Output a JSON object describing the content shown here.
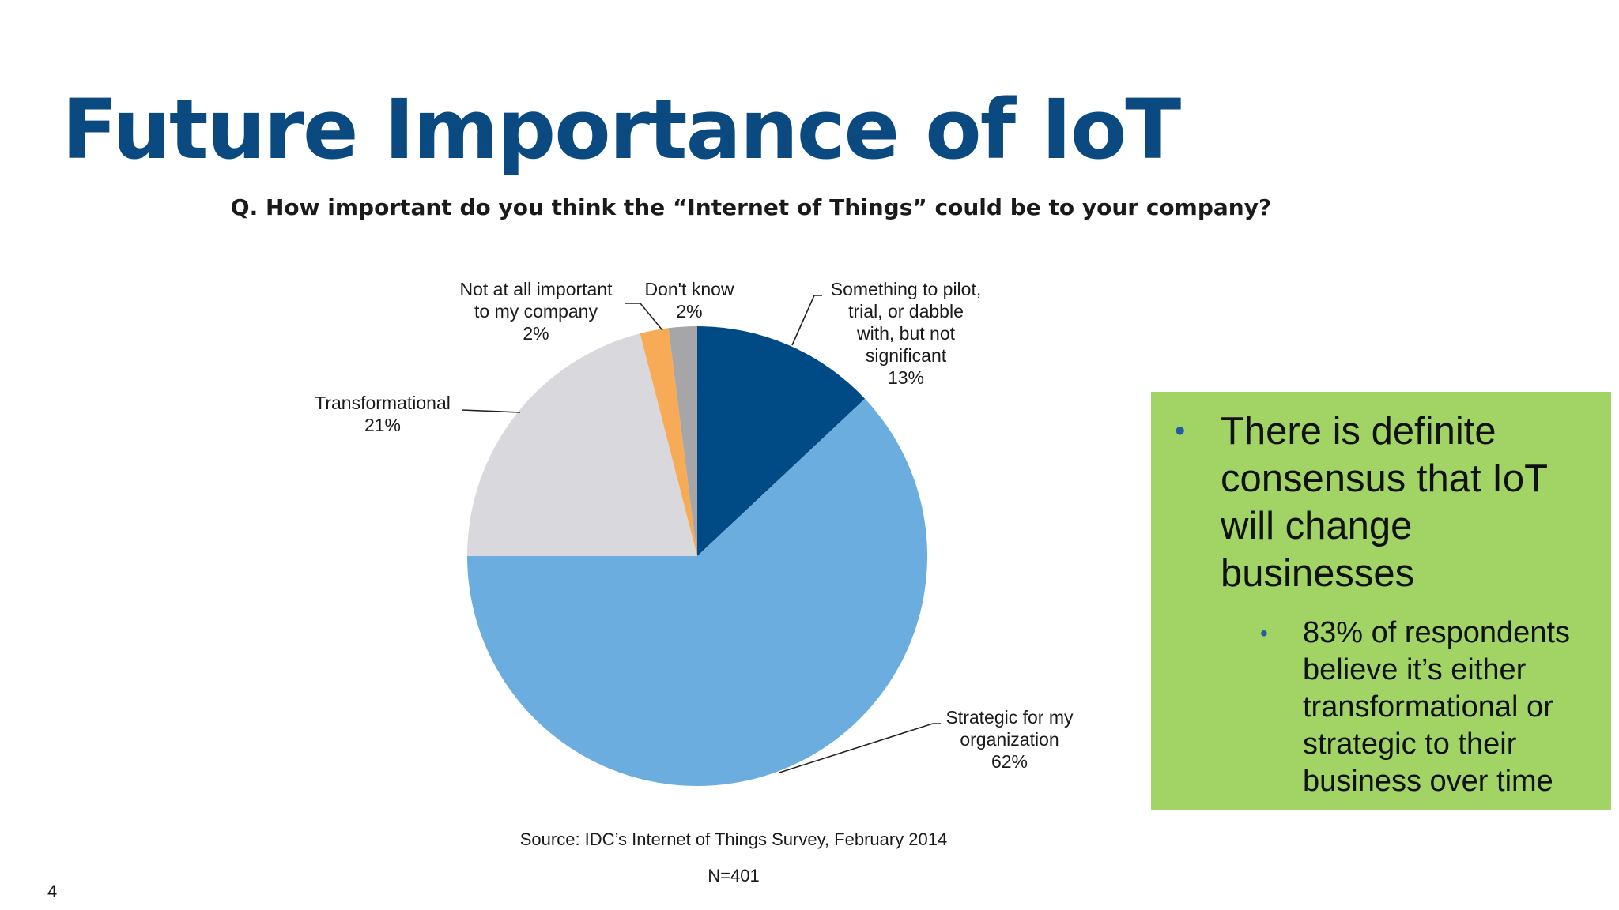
{
  "slide": {
    "title": "Future Importance of IoT",
    "question": "Q. How important do you think the “Internet of Things” could be to your company?",
    "source": "Source: IDC’s Internet of Things Survey, February 2014",
    "n_label": "N=401",
    "page_number": "4"
  },
  "callout": {
    "background": "#a1d365",
    "bullet": "There is definite consensus that IoT will change businesses",
    "sub_bullet": "83% of respondents believe it’s either transformational or strategic to their business over time"
  },
  "chart_data": {
    "type": "pie",
    "title": "",
    "start_angle": "12 o'clock, clockwise",
    "slices": [
      {
        "label": "Something to pilot, trial, or dabble with, but not significant",
        "label_lines": [
          "Something to pilot,",
          "trial, or dabble",
          "with, but not",
          "significant"
        ],
        "value": 13,
        "value_label": "13%",
        "color": "#004a86"
      },
      {
        "label": "Strategic for my organization",
        "label_lines": [
          "Strategic for my",
          "organization"
        ],
        "value": 62,
        "value_label": "62%",
        "color": "#6baddf"
      },
      {
        "label": "Transformational",
        "label_lines": [
          "Transformational"
        ],
        "value": 21,
        "value_label": "21%",
        "color": "#d9d8dc"
      },
      {
        "label": "Not at all important to my company",
        "label_lines": [
          "Not at all important",
          "to my company"
        ],
        "value": 2,
        "value_label": "2%",
        "color": "#f7ab56"
      },
      {
        "label": "Don't know",
        "label_lines": [
          "Don't know"
        ],
        "value": 2,
        "value_label": "2%",
        "color": "#a6a6a9"
      }
    ]
  }
}
